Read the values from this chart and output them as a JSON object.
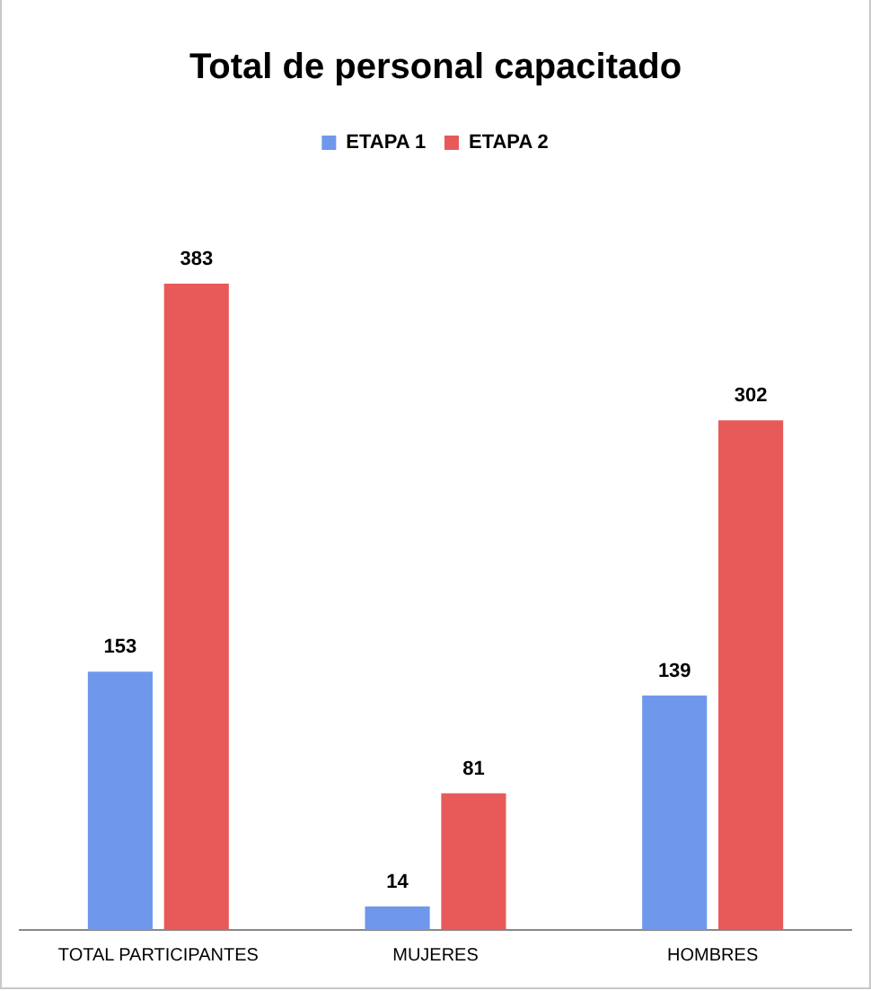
{
  "chart_data": {
    "type": "bar",
    "title": "Total de personal capacitado",
    "categories": [
      "TOTAL PARTICIPANTES",
      "MUJERES",
      "HOMBRES"
    ],
    "series": [
      {
        "name": "ETAPA 1",
        "color": "#6f98ec",
        "values": [
          153,
          14,
          139
        ]
      },
      {
        "name": "ETAPA 2",
        "color": "#e85a5a",
        "values": [
          383,
          81,
          302
        ]
      }
    ],
    "data_labels": true,
    "legend": "top",
    "grid": false
  }
}
